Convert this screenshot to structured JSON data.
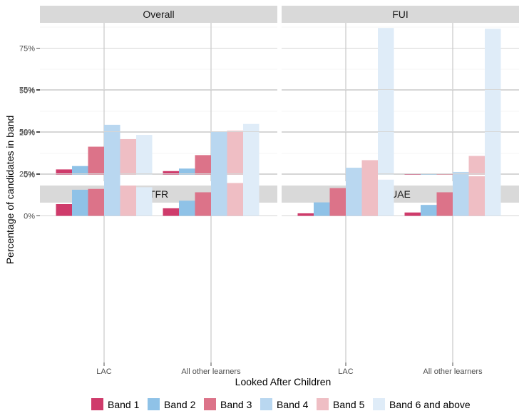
{
  "chart_data": {
    "type": "bar",
    "xlabel": "Looked After Children",
    "ylabel": "Percentage of candidates in band",
    "ylim": [
      0,
      90
    ],
    "yticks": [
      0,
      25,
      50,
      75
    ],
    "ytick_labels": [
      "0%",
      "25%",
      "50%",
      "75%"
    ],
    "categories": [
      "LAC",
      "All other learners"
    ],
    "legend_position": "bottom",
    "grid": true,
    "series": [
      {
        "name": "Band 1",
        "color": "#cf3b6b"
      },
      {
        "name": "Band 2",
        "color": "#8fc2e7"
      },
      {
        "name": "Band 3",
        "color": "#dc7389"
      },
      {
        "name": "Band 4",
        "color": "#b9d7f0"
      },
      {
        "name": "Band 5",
        "color": "#efbec4"
      },
      {
        "name": "Band 6 and above",
        "color": "#dfecf8"
      }
    ],
    "panels": [
      {
        "title": "Overall",
        "values": [
          [
            3,
            5,
            16.5,
            29.5,
            21,
            23.5
          ],
          [
            2,
            3.5,
            11.5,
            25.5,
            26,
            30
          ]
        ]
      },
      {
        "title": "FUI",
        "values": [
          [
            0,
            0,
            0,
            4,
            8.5,
            87
          ],
          [
            0.5,
            0.3,
            0.5,
            1.5,
            11,
            86.5
          ]
        ]
      },
      {
        "title": "TFR",
        "values": [
          [
            7,
            15.5,
            16,
            25.5,
            18,
            17
          ],
          [
            4.5,
            9,
            14,
            26,
            19.5,
            25.5
          ]
        ]
      },
      {
        "title": "UAE",
        "values": [
          [
            1.5,
            8,
            16.5,
            25.5,
            25.5,
            21.5
          ],
          [
            2,
            6.5,
            14,
            24.5,
            23.5,
            29
          ]
        ]
      }
    ]
  }
}
